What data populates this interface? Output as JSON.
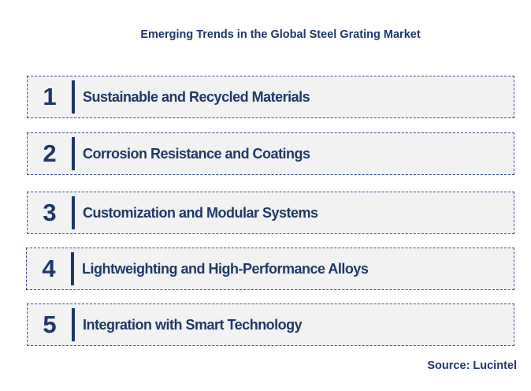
{
  "title": "Emerging Trends in the Global Steel Grating Market",
  "trends": [
    {
      "number": "1",
      "label": "Sustainable and Recycled Materials"
    },
    {
      "number": "2",
      "label": "Corrosion Resistance and Coatings"
    },
    {
      "number": "3",
      "label": "Customization and Modular Systems"
    },
    {
      "number": "4",
      "label": "Lightweighting and High-Performance Alloys"
    },
    {
      "number": "5",
      "label": "Integration with Smart Technology"
    }
  ],
  "source": "Source: Lucintel",
  "colors": {
    "accent": "#1f3868",
    "box_background": "#f2f2f2",
    "box_border": "#3a4f86"
  }
}
